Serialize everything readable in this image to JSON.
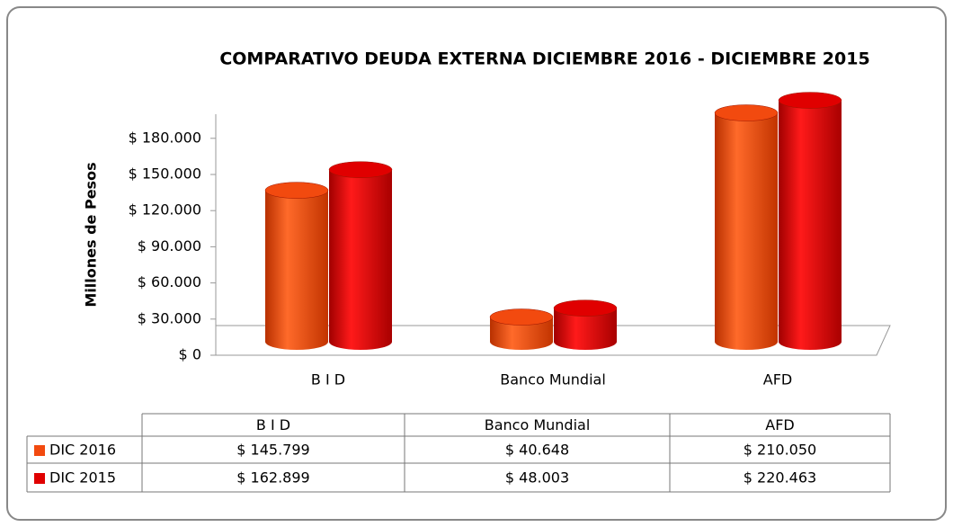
{
  "chart_data": {
    "type": "bar3d",
    "title": "COMPARATIVO DEUDA EXTERNA DICIEMBRE 2016 - DICIEMBRE 2015",
    "y_label": "Millones de Pesos",
    "categories": [
      "B I D",
      "Banco Mundial",
      "AFD"
    ],
    "series": [
      {
        "name": "DIC 2016",
        "color": "#f24a0f",
        "values": [
          145799,
          40648,
          210050
        ],
        "value_labels": [
          "$ 145.799",
          "$ 40.648",
          "$ 210.050"
        ]
      },
      {
        "name": "DIC 2015",
        "color": "#e00000",
        "values": [
          162899,
          48003,
          220463
        ],
        "value_labels": [
          "$ 162.899",
          "$ 48.003",
          "$ 220.463"
        ]
      }
    ],
    "ylim": [
      0,
      200000
    ],
    "yticks": [
      {
        "value": 0,
        "label": "$ 0"
      },
      {
        "value": 30000,
        "label": "$ 30.000"
      },
      {
        "value": 60000,
        "label": "$ 60.000"
      },
      {
        "value": 90000,
        "label": "$ 90.000"
      },
      {
        "value": 120000,
        "label": "$ 120.000"
      },
      {
        "value": 150000,
        "label": "$ 150.000"
      },
      {
        "value": 180000,
        "label": "$ 180.000"
      }
    ]
  }
}
